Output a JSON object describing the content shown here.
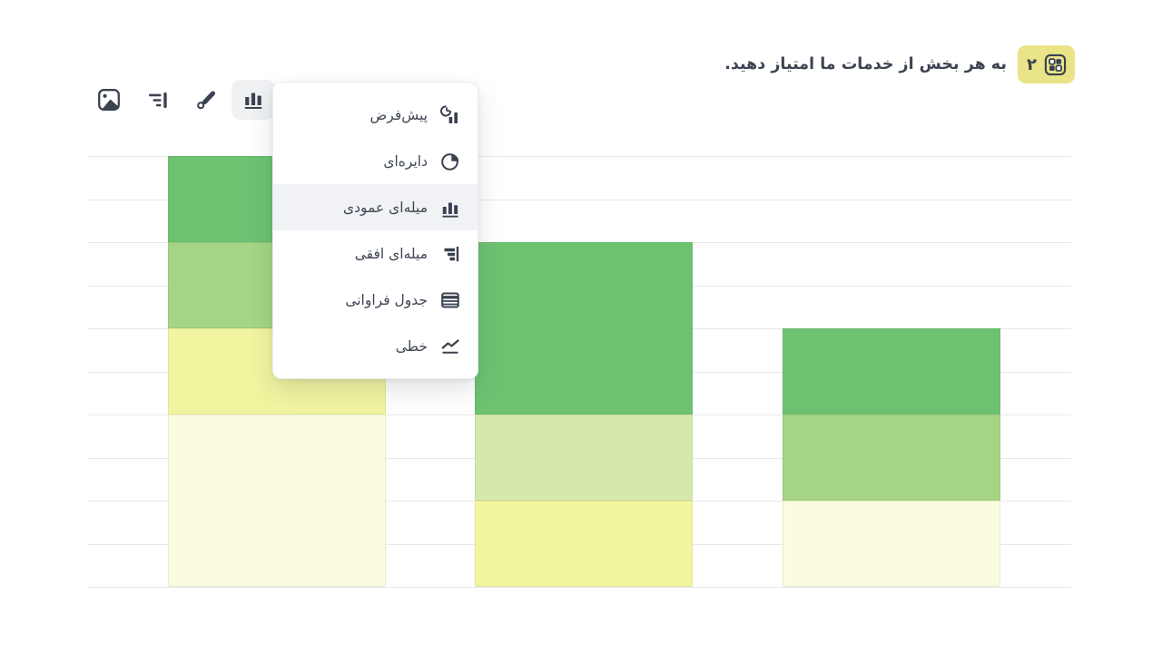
{
  "header": {
    "question_number": "۲",
    "question_title": "به هر بخش از خدمات ما امتیاز دهید.",
    "badge_color": "#e8e487",
    "badge_icon": "matrix-question-icon"
  },
  "toolbar": {
    "items": [
      {
        "name": "image",
        "icon": "image-icon",
        "active": false
      },
      {
        "name": "order",
        "icon": "list-filter-icon",
        "active": false
      },
      {
        "name": "style",
        "icon": "brush-icon",
        "active": false
      },
      {
        "name": "chart-type",
        "icon": "bar-chart-icon",
        "active": true
      }
    ]
  },
  "menu": {
    "items": [
      {
        "label": "پیش‌فرض",
        "icon": "default-chart-icon",
        "selected": false
      },
      {
        "label": "دایره‌ای",
        "icon": "pie-chart-icon",
        "selected": false
      },
      {
        "label": "میله‌ای عمودی",
        "icon": "vertical-bar-chart-icon",
        "selected": true
      },
      {
        "label": "میله‌ای افقی",
        "icon": "horizontal-bar-chart-icon",
        "selected": false
      },
      {
        "label": "جدول فراوانی",
        "icon": "frequency-table-icon",
        "selected": false
      },
      {
        "label": "خطی",
        "icon": "line-chart-icon",
        "selected": false
      }
    ],
    "selected_color": "#f1f2f5"
  },
  "chart_data": {
    "type": "bar",
    "subtype": "stacked-vertical",
    "title": "",
    "xlabel": "",
    "ylabel": "",
    "ylim": [
      0,
      100
    ],
    "gridline_step": 10,
    "grid": true,
    "legend": false,
    "gridline_color": "#e8e8e8",
    "palette": {
      "rating_high": "#6dc272",
      "rating_mid_high": "#a5d584",
      "rating_mid": "#d6e9ab",
      "rating_mid_low": "#f1f5a0",
      "rating_low": "#fbfcdf"
    },
    "bars": [
      {
        "total": 100,
        "segments_top_to_bottom": [
          {
            "color": "#6dc272",
            "value": 20
          },
          {
            "color": "#a5d584",
            "value": 20
          },
          {
            "color": "#f1f5a0",
            "value": 20
          },
          {
            "color": "#fbfcdf",
            "value": 40
          }
        ]
      },
      {
        "total": 80,
        "segments_top_to_bottom": [
          {
            "color": "#6dc272",
            "value": 40
          },
          {
            "color": "#d6e9ab",
            "value": 20
          },
          {
            "color": "#f1f5a0",
            "value": 20
          }
        ]
      },
      {
        "total": 60,
        "segments_top_to_bottom": [
          {
            "color": "#6dc272",
            "value": 20
          },
          {
            "color": "#a5d584",
            "value": 20
          },
          {
            "color": "#fbfcdf",
            "value": 20
          }
        ]
      }
    ]
  }
}
